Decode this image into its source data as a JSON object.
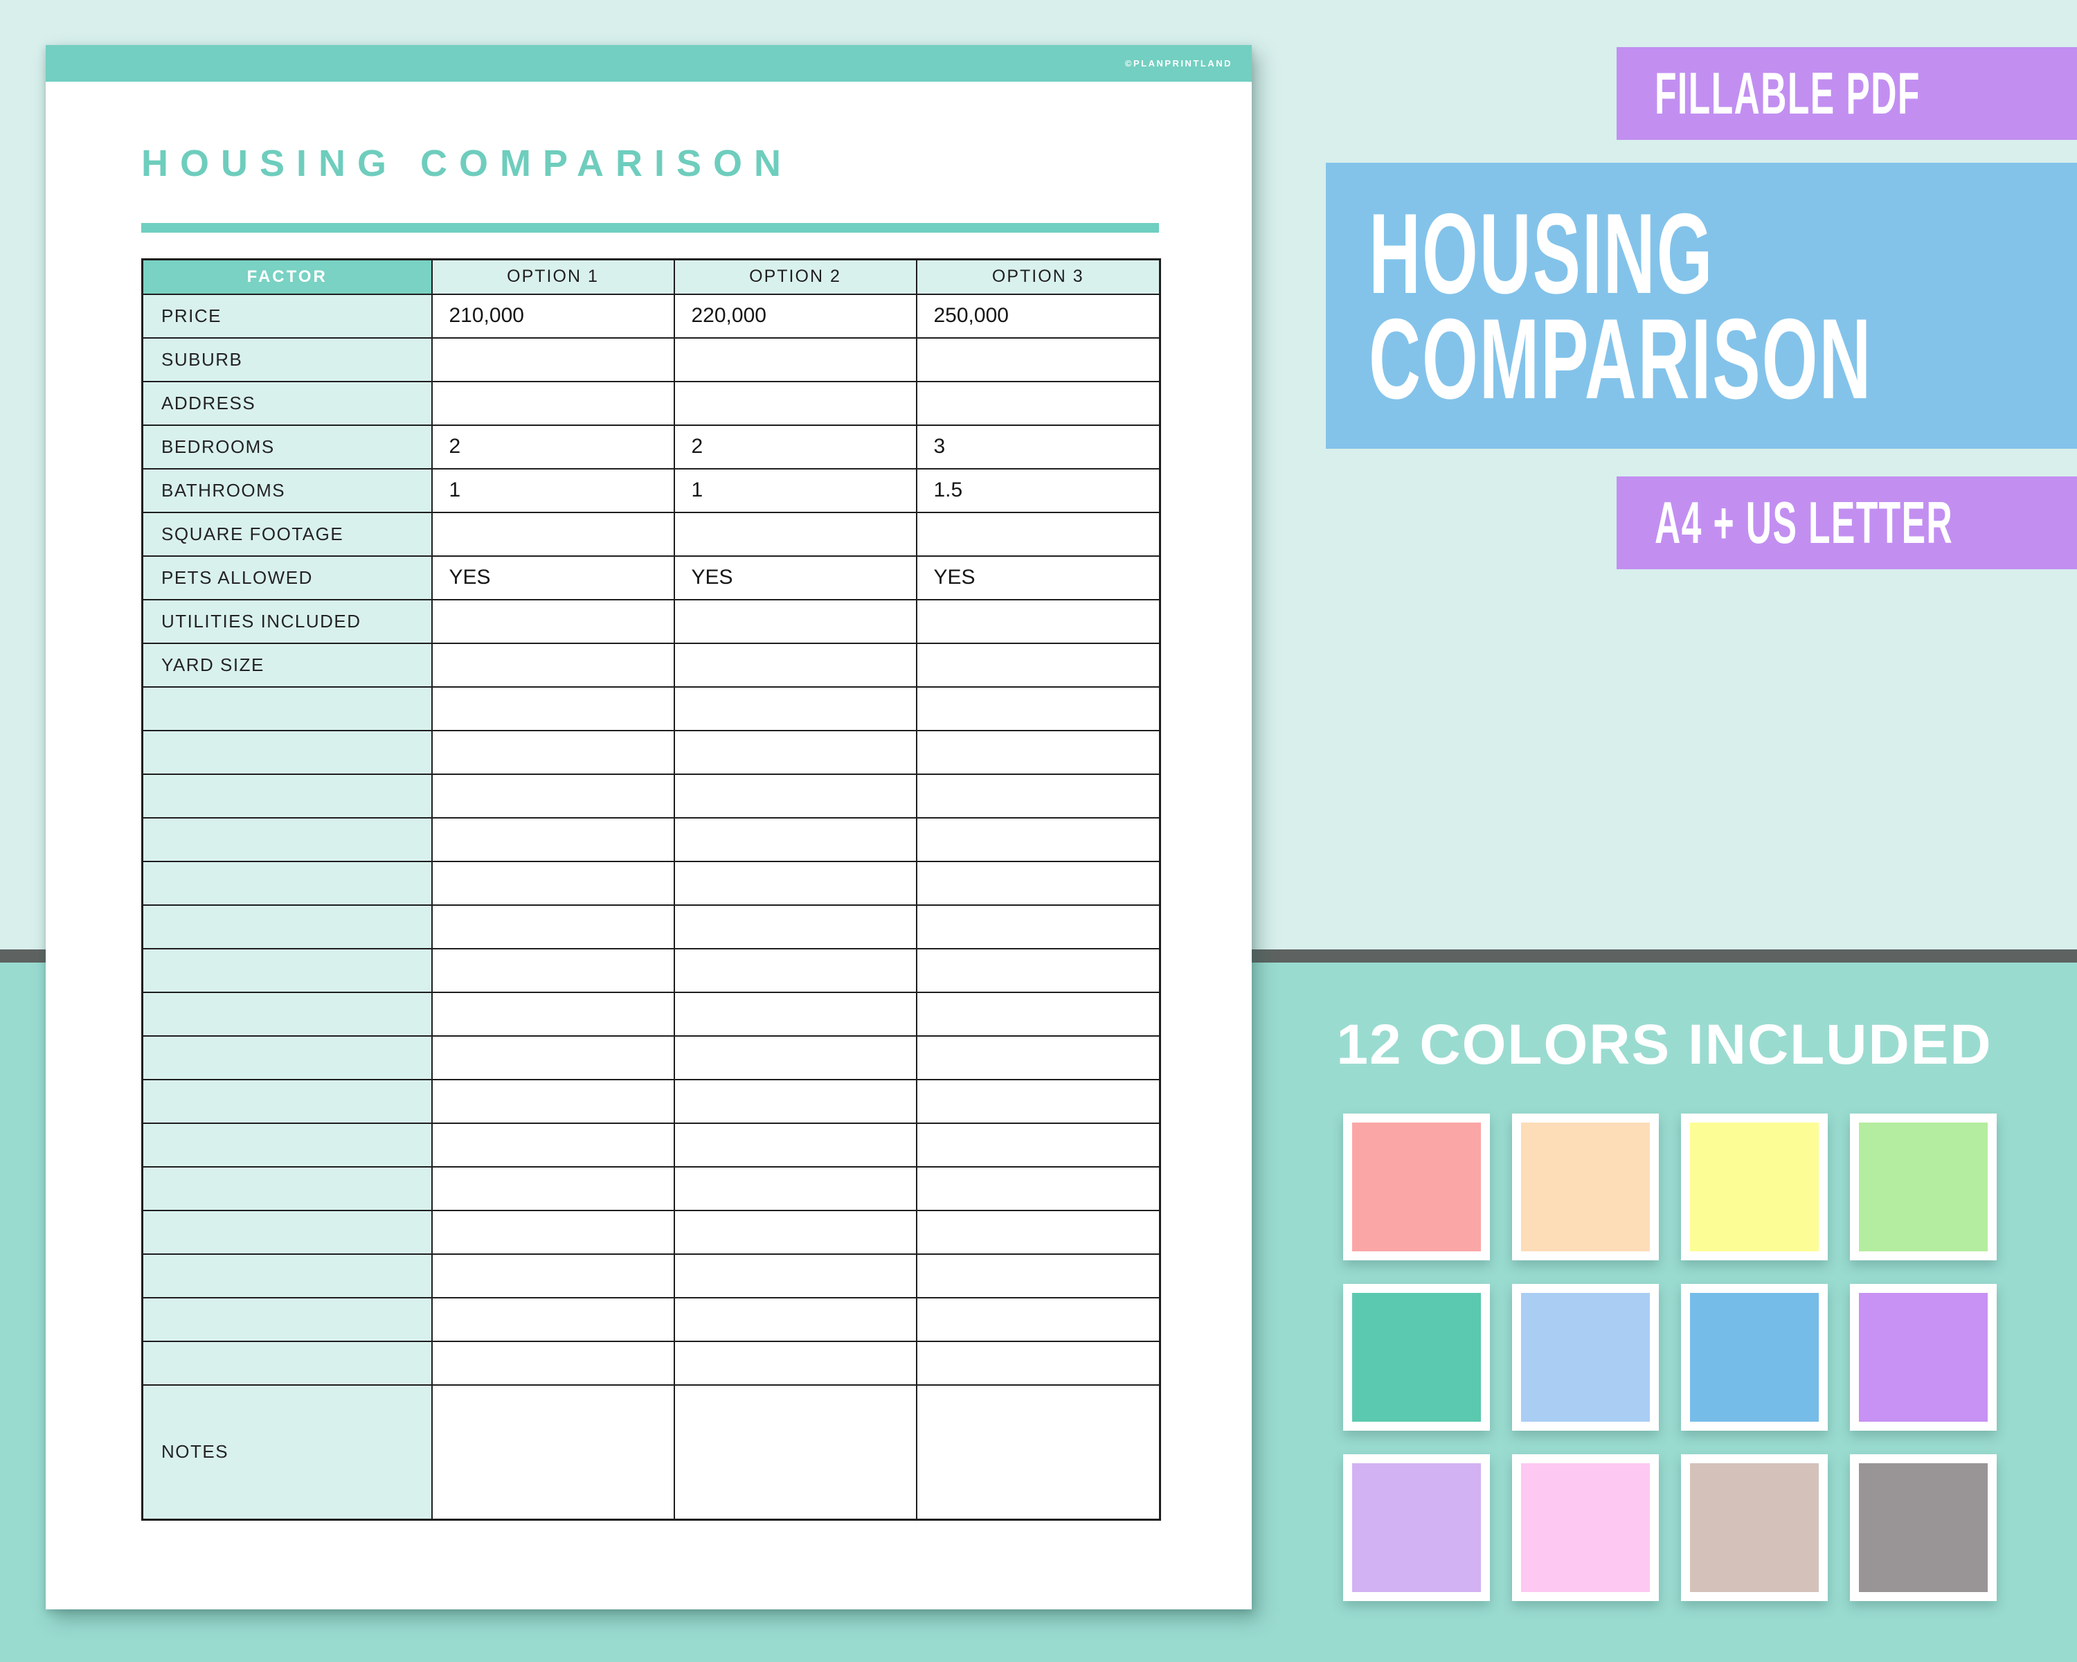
{
  "page": {
    "copyright": "©PLANPRINTLAND",
    "title": "HOUSING COMPARISON",
    "table": {
      "factor_header": "FACTOR",
      "option_headers": [
        "OPTION 1",
        "OPTION 2",
        "OPTION 3"
      ],
      "rows": [
        {
          "label": "PRICE",
          "values": [
            "210,000",
            "220,000",
            "250,000"
          ]
        },
        {
          "label": "SUBURB",
          "values": [
            "",
            "",
            ""
          ]
        },
        {
          "label": "ADDRESS",
          "values": [
            "",
            "",
            ""
          ]
        },
        {
          "label": "BEDROOMS",
          "values": [
            "2",
            "2",
            "3"
          ]
        },
        {
          "label": "BATHROOMS",
          "values": [
            "1",
            "1",
            "1.5"
          ]
        },
        {
          "label": "SQUARE FOOTAGE",
          "values": [
            "",
            "",
            ""
          ]
        },
        {
          "label": "PETS ALLOWED",
          "values": [
            "YES",
            "YES",
            "YES"
          ]
        },
        {
          "label": "UTILITIES INCLUDED",
          "values": [
            "",
            "",
            ""
          ]
        },
        {
          "label": "YARD SIZE",
          "values": [
            "",
            "",
            ""
          ]
        }
      ],
      "empty_row_count": 16,
      "notes_label": "NOTES"
    }
  },
  "promo": {
    "fillable_badge": "FILLABLE PDF",
    "main_title_lines": [
      "HOUSING",
      "COMPARISON"
    ],
    "size_badge": "A4 + US LETTER",
    "colors_heading": "12 COLORS INCLUDED",
    "swatches": [
      "#FBA6A6",
      "#FDDCB8",
      "#FDFD96",
      "#B4EDA0",
      "#5BC9AF",
      "#AACDF4",
      "#76BCE8",
      "#C792F3",
      "#D3B2F3",
      "#FDC8F2",
      "#D4C2BA",
      "#999496"
    ]
  },
  "colors": {
    "background_top": "#D8EFEC",
    "background_bottom": "#9ADBD0",
    "divider": "#5E6361",
    "page_top_bar": "#73CFC1",
    "doc_title": "#6ECDBD",
    "table_header_teal": "#79D2C3",
    "cell_mint": "#D9F1ED",
    "badge_purple": "#C28FF1",
    "panel_blue": "#83C3EA"
  }
}
